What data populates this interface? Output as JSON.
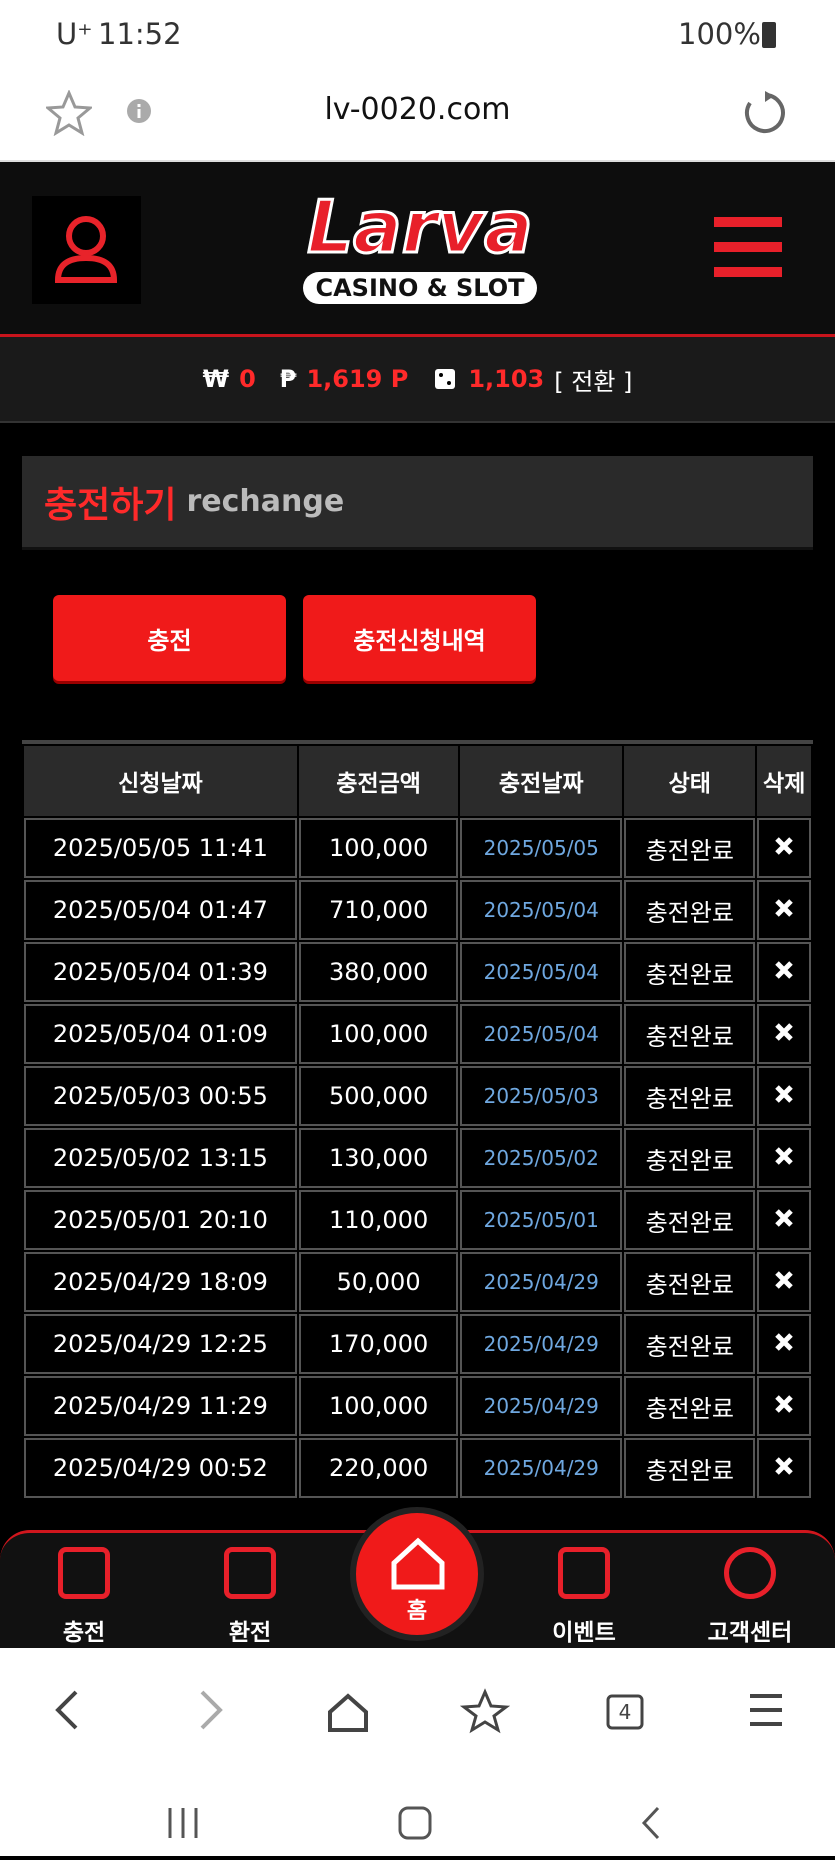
{
  "status_bar": {
    "carrier": "U⁺",
    "time": "11:52",
    "battery": "100%"
  },
  "browser": {
    "url": "lv-0020.com",
    "tab_count": "4"
  },
  "header": {
    "logo": "Larva",
    "logo_sub": "CASINO & SLOT"
  },
  "balance": {
    "won_symbol": "₩",
    "won": "0",
    "point_symbol": "₱",
    "point": "1,619 P",
    "chip": "1,103",
    "convert": "[ 전환 ]"
  },
  "page": {
    "title": "충전하기",
    "subtitle": "rechange"
  },
  "buttons": [
    "충전",
    "충전신청내역"
  ],
  "table": {
    "headers": [
      "신청날짜",
      "충전금액",
      "충전날짜",
      "상태",
      "삭제"
    ],
    "rows": [
      [
        "2025/05/05 11:41",
        "100,000",
        "2025/05/05",
        "충전완료"
      ],
      [
        "2025/05/04 01:47",
        "710,000",
        "2025/05/04",
        "충전완료"
      ],
      [
        "2025/05/04 01:39",
        "380,000",
        "2025/05/04",
        "충전완료"
      ],
      [
        "2025/05/04 01:09",
        "100,000",
        "2025/05/04",
        "충전완료"
      ],
      [
        "2025/05/03 00:55",
        "500,000",
        "2025/05/03",
        "충전완료"
      ],
      [
        "2025/05/02 13:15",
        "130,000",
        "2025/05/02",
        "충전완료"
      ],
      [
        "2025/05/01 20:10",
        "110,000",
        "2025/05/01",
        "충전완료"
      ],
      [
        "2025/04/29 18:09",
        "50,000",
        "2025/04/29",
        "충전완료"
      ],
      [
        "2025/04/29 12:25",
        "170,000",
        "2025/04/29",
        "충전완료"
      ],
      [
        "2025/04/29 11:29",
        "100,000",
        "2025/04/29",
        "충전완료"
      ],
      [
        "2025/04/29 00:52",
        "220,000",
        "2025/04/29",
        "충전완료"
      ]
    ]
  },
  "bottom_nav": [
    "충전",
    "환전",
    "홈",
    "이벤트",
    "고객센터"
  ]
}
